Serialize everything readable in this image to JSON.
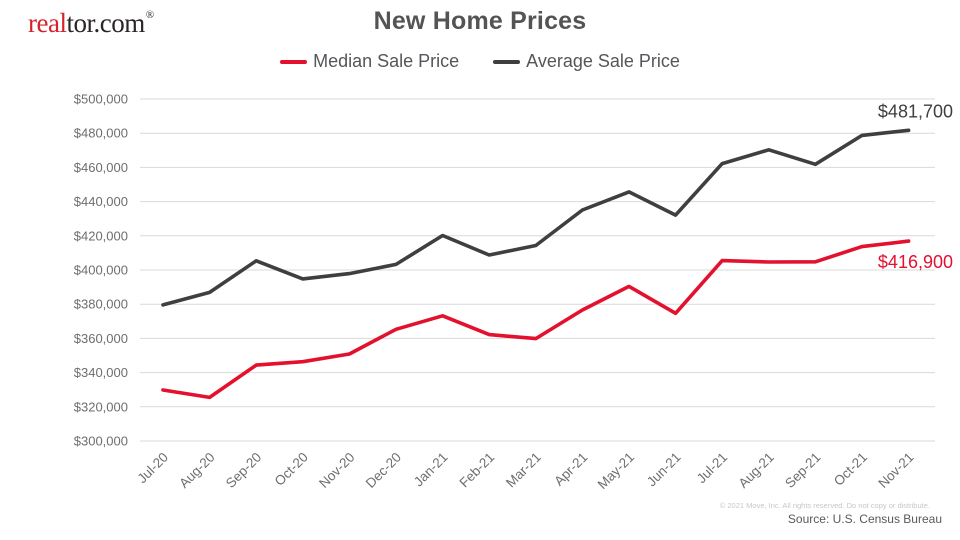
{
  "header": {
    "logo": {
      "part1": "real",
      "part2": "tor.com",
      "registered": "®"
    },
    "title": "New Home Prices"
  },
  "legend": [
    {
      "label": "Median Sale Price",
      "color": "#e3112e"
    },
    {
      "label": "Average Sale Price",
      "color": "#3f3f41"
    }
  ],
  "footer": {
    "copyright": "© 2021 Move, Inc. All rights reserved. Do not copy or distribute.",
    "source": "Source: U.S. Census Bureau"
  },
  "chart_data": {
    "type": "line",
    "title": "New Home Prices",
    "categories": [
      "Jul-20",
      "Aug-20",
      "Sep-20",
      "Oct-20",
      "Nov-20",
      "Dec-20",
      "Jan-21",
      "Feb-21",
      "Mar-21",
      "Apr-21",
      "May-21",
      "Jun-21",
      "Jul-21",
      "Aug-21",
      "Sep-21",
      "Oct-21",
      "Nov-21"
    ],
    "series": [
      {
        "name": "Median Sale Price",
        "color": "#e3112e",
        "values": [
          329800,
          325500,
          344400,
          346400,
          350900,
          365300,
          373200,
          362200,
          359900,
          376600,
          390400,
          374700,
          405500,
          404700,
          404800,
          413700,
          416900
        ],
        "end_label": "$416,900"
      },
      {
        "name": "Average Sale Price",
        "color": "#3f3f41",
        "values": [
          379600,
          386900,
          405400,
          394800,
          397900,
          403300,
          420200,
          408800,
          414300,
          435100,
          445700,
          432100,
          462200,
          470300,
          461800,
          478700,
          481700
        ],
        "end_label": "$481,700"
      }
    ],
    "xlabel": "",
    "ylabel": "",
    "ylim": [
      300000,
      500000
    ],
    "y_tick_step": 20000,
    "y_ticks": [
      "$500,000",
      "$480,000",
      "$460,000",
      "$440,000",
      "$420,000",
      "$400,000",
      "$380,000",
      "$360,000",
      "$340,000",
      "$320,000",
      "$300,000"
    ],
    "grid": "horizontal-only",
    "legend_position": "top-center",
    "x_label_rotation": -45
  }
}
